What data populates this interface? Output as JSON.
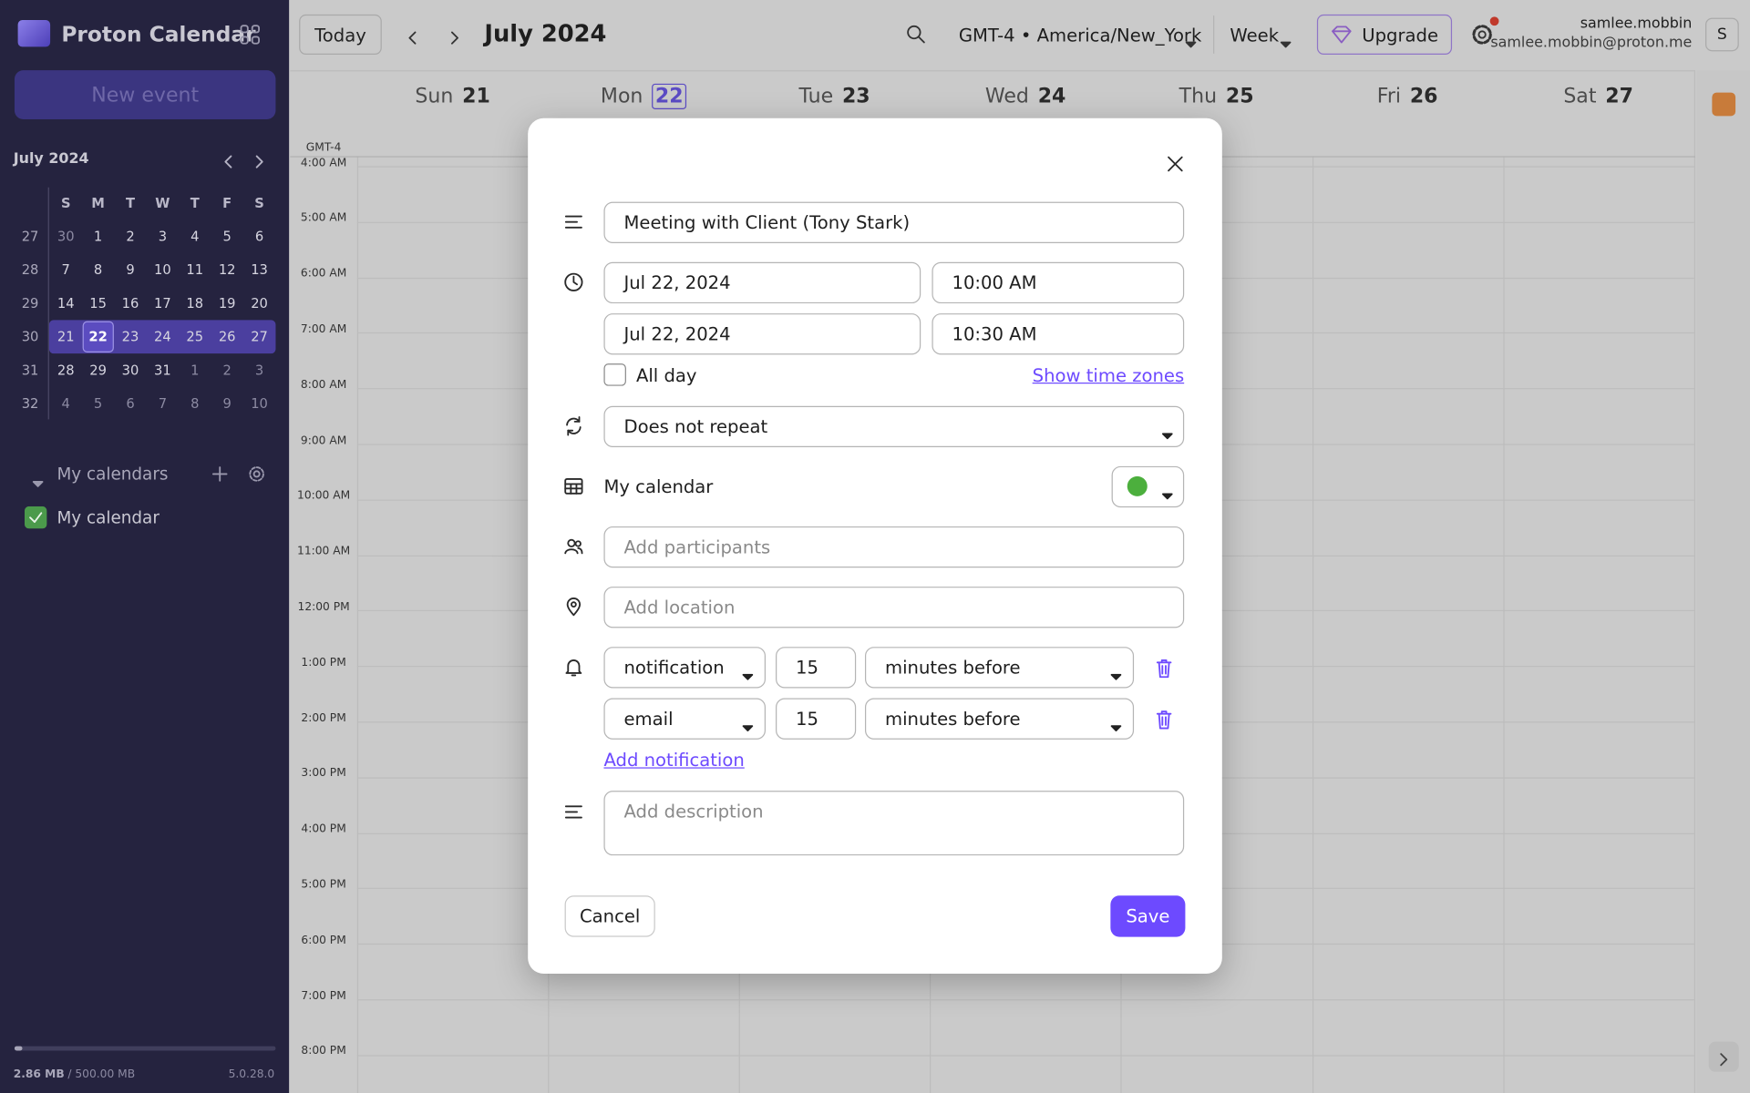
{
  "header": {
    "app_name": "Proton Calendar",
    "today": "Today",
    "month_title": "July 2024",
    "timezone": "GMT-4 • America/New_York",
    "view": "Week",
    "upgrade": "Upgrade",
    "username": "samlee.mobbin",
    "email": "samlee.mobbin@proton.me",
    "avatar": "S"
  },
  "sidebar": {
    "new_event": "New event",
    "mini_calendar": {
      "title": "July 2024",
      "weekdays": [
        "S",
        "M",
        "T",
        "W",
        "T",
        "F",
        "S"
      ],
      "weeks": [
        {
          "number": "27",
          "days": [
            "30",
            "1",
            "2",
            "3",
            "4",
            "5",
            "6"
          ]
        },
        {
          "number": "28",
          "days": [
            "7",
            "8",
            "9",
            "10",
            "11",
            "12",
            "13"
          ]
        },
        {
          "number": "29",
          "days": [
            "14",
            "15",
            "16",
            "17",
            "18",
            "19",
            "20"
          ]
        },
        {
          "number": "30",
          "days": [
            "21",
            "22",
            "23",
            "24",
            "25",
            "26",
            "27"
          ]
        },
        {
          "number": "31",
          "days": [
            "28",
            "29",
            "30",
            "31",
            "1",
            "2",
            "3"
          ]
        },
        {
          "number": "32",
          "days": [
            "4",
            "5",
            "6",
            "7",
            "8",
            "9",
            "10"
          ]
        }
      ]
    },
    "my_calendars": "My calendars",
    "calendars": [
      "My calendar"
    ],
    "storage_used": "2.86 MB",
    "storage_total": "/ 500.00 MB",
    "version": "5.0.28.0"
  },
  "week_view": {
    "timezone": "GMT-4",
    "days": [
      {
        "name": "Sun",
        "date": "21"
      },
      {
        "name": "Mon",
        "date": "22"
      },
      {
        "name": "Tue",
        "date": "23"
      },
      {
        "name": "Wed",
        "date": "24"
      },
      {
        "name": "Thu",
        "date": "25"
      },
      {
        "name": "Fri",
        "date": "26"
      },
      {
        "name": "Sat",
        "date": "27"
      }
    ],
    "hours": [
      "4:00 AM",
      "5:00 AM",
      "6:00 AM",
      "7:00 AM",
      "8:00 AM",
      "9:00 AM",
      "10:00 AM",
      "11:00 AM",
      "12:00 PM",
      "1:00 PM",
      "2:00 PM",
      "3:00 PM",
      "4:00 PM",
      "5:00 PM",
      "6:00 PM",
      "7:00 PM",
      "8:00 PM"
    ]
  },
  "dialog": {
    "title": "Meeting with Client (Tony Stark)",
    "start_date": "Jul 22, 2024",
    "start_time": "10:00 AM",
    "end_date": "Jul 22, 2024",
    "end_time": "10:30 AM",
    "all_day": "All day",
    "show_time_zones": "Show time zones",
    "repeat": "Does not repeat",
    "calendar": "My calendar",
    "participants_placeholder": "Add participants",
    "location_placeholder": "Add location",
    "notifications": [
      {
        "type": "notification",
        "amount": "15",
        "unit": "minutes before"
      },
      {
        "type": "email",
        "amount": "15",
        "unit": "minutes before"
      }
    ],
    "add_notification": "Add notification",
    "description_placeholder": "Add description",
    "cancel": "Cancel",
    "save": "Save"
  }
}
